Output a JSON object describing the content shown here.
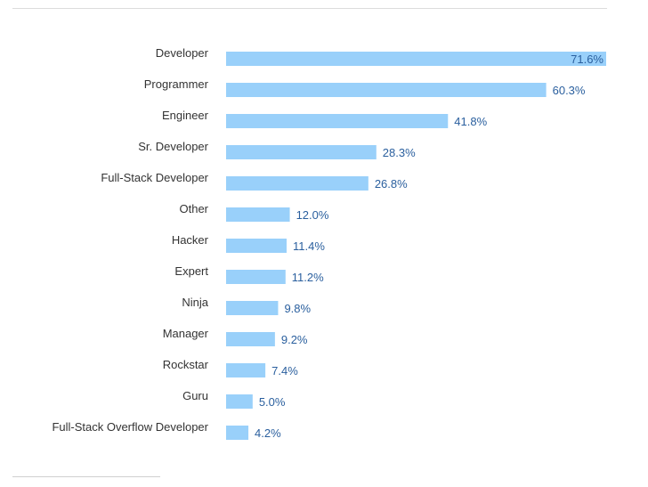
{
  "chart_data": {
    "type": "bar",
    "orientation": "horizontal",
    "categories": [
      "Developer",
      "Programmer",
      "Engineer",
      "Sr. Developer",
      "Full-Stack Developer",
      "Other",
      "Hacker",
      "Expert",
      "Ninja",
      "Manager",
      "Rockstar",
      "Guru",
      "Full-Stack Overflow Developer"
    ],
    "values": [
      71.6,
      60.3,
      41.8,
      28.3,
      26.8,
      12.0,
      11.4,
      11.2,
      9.8,
      9.2,
      7.4,
      5.0,
      4.2
    ],
    "value_labels": [
      "71.6%",
      "60.3%",
      "41.8%",
      "28.3%",
      "26.8%",
      "12.0%",
      "11.4%",
      "11.2%",
      "9.8%",
      "9.2%",
      "7.4%",
      "5.0%",
      "4.2%"
    ],
    "unit": "%",
    "title": "",
    "xlabel": "",
    "ylabel": "",
    "xlim": [
      0,
      71.6
    ],
    "grid": false,
    "colors": {
      "bar": "#99d0fa",
      "value_label": "#2a5f9e",
      "category_label": "#333333"
    }
  }
}
